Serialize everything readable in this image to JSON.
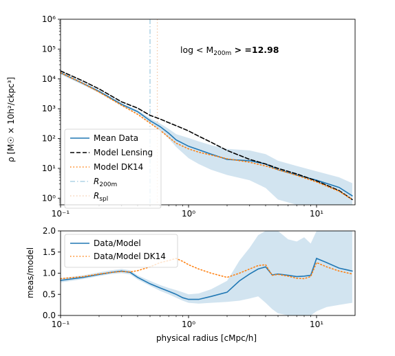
{
  "chart_data": [
    {
      "type": "line",
      "xscale": "log",
      "yscale": "log",
      "xlim": [
        0.1,
        20
      ],
      "ylim": [
        0.6,
        1000000
      ],
      "xticks": [
        0.1,
        1,
        10
      ],
      "xtick_labels": [
        "10⁻¹",
        "10⁰",
        "10¹"
      ],
      "yticks": [
        1,
        10,
        100,
        1000,
        10000,
        100000,
        1000000
      ],
      "ytick_labels": [
        "10⁰",
        "10¹",
        "10²",
        "10³",
        "10⁴",
        "10⁵",
        "10⁶"
      ],
      "ylabel": "ρ [M☉ × 10h²/ckpc³]",
      "annotation": {
        "prefix": "log < M",
        "sub": "200m",
        "suffix": " > =12.98"
      },
      "legend_position": "lower-left",
      "x": [
        0.1,
        0.15,
        0.2,
        0.3,
        0.4,
        0.5,
        0.6,
        0.7,
        0.8,
        1.0,
        1.2,
        1.5,
        2.0,
        3.0,
        4.0,
        5.0,
        7.0,
        10.0,
        15.0,
        19.0
      ],
      "series": [
        {
          "name": "Mean Data",
          "style": "solid",
          "color": "#1f77b4",
          "values": [
            16000,
            7000,
            3800,
            1400,
            800,
            400,
            250,
            150,
            90,
            55,
            42,
            30,
            20,
            18,
            14,
            9,
            6,
            4,
            2.3,
            1.2
          ]
        },
        {
          "name": "Model Lensing",
          "style": "dashed",
          "color": "#000000",
          "values": [
            18500,
            8500,
            4600,
            1700,
            1050,
            600,
            450,
            340,
            270,
            180,
            120,
            75,
            40,
            20,
            14,
            10,
            6.5,
            3.8,
            1.8,
            0.9
          ]
        },
        {
          "name": "Model DK14",
          "style": "dotted",
          "color": "#ff7f0e",
          "values": [
            16000,
            7000,
            3600,
            1300,
            650,
            330,
            190,
            110,
            70,
            45,
            35,
            28,
            21,
            16,
            12,
            9,
            5.8,
            3.5,
            1.7,
            0.9
          ]
        }
      ],
      "band": {
        "color": "#1f77b4",
        "opacity": 0.2,
        "lower": [
          14000,
          6200,
          3400,
          1250,
          700,
          330,
          190,
          100,
          52,
          22,
          14,
          9,
          6,
          4,
          2.2,
          0.9,
          0.3,
          0.3,
          0.3,
          0.3
        ],
        "upper": [
          18000,
          7800,
          4200,
          1550,
          900,
          480,
          320,
          210,
          140,
          105,
          80,
          60,
          45,
          40,
          30,
          18,
          12,
          8,
          5,
          3.2
        ]
      },
      "vlines": [
        {
          "name": "R₂₀₀ₘ",
          "label_main": "R",
          "label_sub": "200m",
          "x": 0.5,
          "style": "dashdot",
          "color": "#9ecae1"
        },
        {
          "name": "Rₛₚₗ",
          "label_main": "R",
          "label_sub": "spl",
          "x": 0.57,
          "style": "dotted",
          "color": "#f3c7a6"
        }
      ]
    },
    {
      "type": "line",
      "xscale": "log",
      "yscale": "linear",
      "xlim": [
        0.1,
        20
      ],
      "ylim": [
        0.0,
        2.0
      ],
      "xticks": [
        0.1,
        1,
        10
      ],
      "xtick_labels": [
        "10⁻¹",
        "10⁰",
        "10¹"
      ],
      "yticks": [
        0.0,
        0.5,
        1.0,
        1.5,
        2.0
      ],
      "ytick_labels": [
        "0.0",
        "0.5",
        "1.0",
        "1.5",
        "2.0"
      ],
      "xlabel": "physical radius [cMpc/h]",
      "ylabel": "meas/model",
      "legend_position": "upper-left",
      "x": [
        0.1,
        0.15,
        0.2,
        0.25,
        0.3,
        0.35,
        0.4,
        0.5,
        0.6,
        0.7,
        0.8,
        0.9,
        1.0,
        1.2,
        1.5,
        2.0,
        2.5,
        3.0,
        3.5,
        4.0,
        4.5,
        5.0,
        6.0,
        7.0,
        8.0,
        9.0,
        10.0,
        12.0,
        15.0,
        19.0
      ],
      "series": [
        {
          "name": "Data/Model",
          "style": "solid",
          "color": "#1f77b4",
          "values": [
            0.83,
            0.9,
            0.97,
            1.02,
            1.05,
            1.02,
            0.9,
            0.75,
            0.65,
            0.57,
            0.5,
            0.42,
            0.38,
            0.38,
            0.45,
            0.55,
            0.82,
            0.98,
            1.1,
            1.15,
            0.96,
            0.98,
            0.95,
            0.92,
            0.93,
            0.95,
            1.35,
            1.25,
            1.12,
            1.05
          ]
        },
        {
          "name": "Data/Model DK14",
          "style": "dotted",
          "color": "#ff7f0e",
          "values": [
            0.87,
            0.92,
            0.98,
            1.02,
            1.04,
            1.03,
            1.06,
            1.15,
            1.25,
            1.3,
            1.35,
            1.28,
            1.2,
            1.1,
            1.0,
            0.9,
            1.0,
            1.1,
            1.18,
            1.2,
            0.95,
            0.97,
            0.93,
            0.88,
            0.87,
            0.92,
            1.25,
            1.15,
            1.05,
            0.98
          ]
        }
      ],
      "band": {
        "color": "#1f77b4",
        "opacity": 0.2,
        "lower": [
          0.78,
          0.86,
          0.93,
          0.98,
          1.0,
          0.97,
          0.85,
          0.7,
          0.58,
          0.5,
          0.42,
          0.35,
          0.3,
          0.28,
          0.3,
          0.32,
          0.35,
          0.4,
          0.45,
          0.3,
          0.15,
          0.05,
          0.0,
          0.0,
          0.0,
          0.0,
          0.1,
          0.2,
          0.25,
          0.3
        ],
        "upper": [
          0.88,
          0.95,
          1.02,
          1.07,
          1.1,
          1.07,
          0.95,
          0.82,
          0.72,
          0.65,
          0.6,
          0.55,
          0.5,
          0.52,
          0.62,
          0.82,
          1.3,
          1.6,
          1.9,
          2.0,
          2.0,
          2.0,
          1.8,
          1.75,
          1.85,
          1.7,
          2.0,
          2.0,
          2.0,
          2.0
        ]
      }
    }
  ]
}
